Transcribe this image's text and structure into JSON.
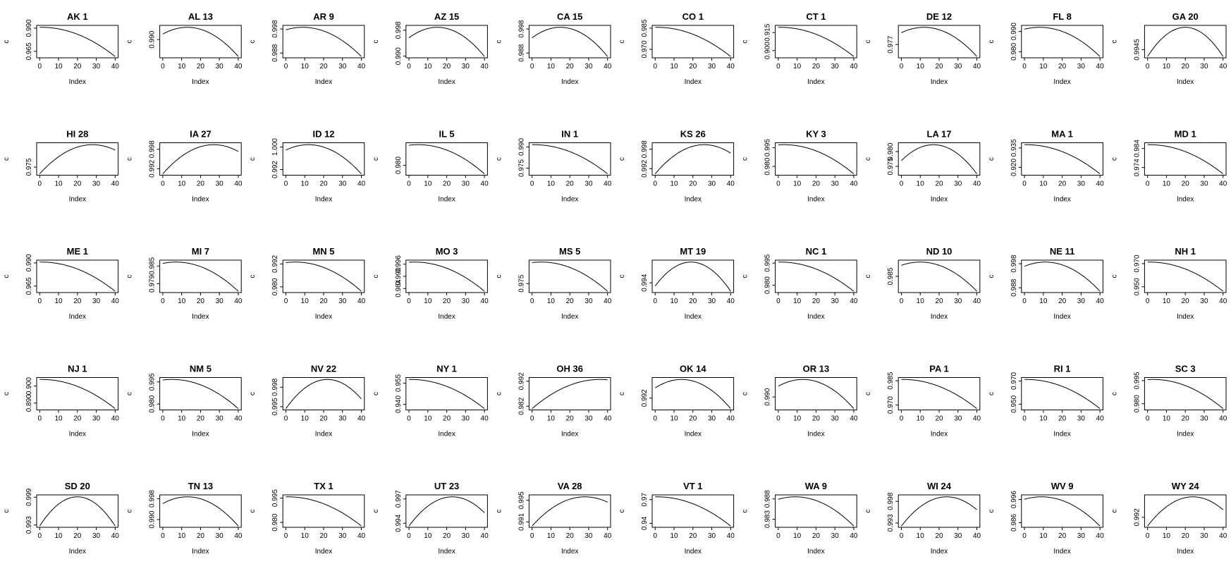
{
  "chart_data": {
    "type": "line",
    "layout": {
      "rows": 5,
      "cols": 10
    },
    "xlabel": "Index",
    "ylabel": "c",
    "xlim": [
      0,
      40
    ],
    "xticks": [
      0,
      10,
      20,
      30,
      40
    ],
    "xtick_labels": [
      "0",
      "10",
      "20",
      "30",
      "40"
    ],
    "panels": [
      {
        "title": "AK 1",
        "peak": 1,
        "ylim": [
          0.958,
          0.993
        ],
        "yticks": [
          0.965,
          0.99
        ],
        "ytick_labels": [
          "0.965",
          "0.990"
        ]
      },
      {
        "title": "AL 13",
        "peak": 13,
        "ylim": [
          0.981,
          0.997
        ],
        "yticks": [
          0.99
        ],
        "ytick_labels": [
          "0.990"
        ]
      },
      {
        "title": "AR 9",
        "peak": 9,
        "ylim": [
          0.986,
          0.9995
        ],
        "yticks": [
          0.988,
          0.998
        ],
        "ytick_labels": [
          "0.988",
          "0.998"
        ]
      },
      {
        "title": "AZ 15",
        "peak": 15,
        "ylim": [
          0.9895,
          0.9995
        ],
        "yticks": [
          0.99,
          0.998
        ],
        "ytick_labels": [
          "0.990",
          "0.998"
        ]
      },
      {
        "title": "CA 15",
        "peak": 15,
        "ylim": [
          0.986,
          0.9995
        ],
        "yticks": [
          0.988,
          0.998
        ],
        "ytick_labels": [
          "0.988",
          "0.998"
        ]
      },
      {
        "title": "CO 1",
        "peak": 1,
        "ylim": [
          0.964,
          0.987
        ],
        "yticks": [
          0.97,
          0.985
        ],
        "ytick_labels": [
          "0.970",
          "0.985"
        ]
      },
      {
        "title": "CT 1",
        "peak": 1,
        "ylim": [
          0.894,
          0.921
        ],
        "yticks": [
          0.9,
          0.915
        ],
        "ytick_labels": [
          "0.900",
          "0.915"
        ]
      },
      {
        "title": "DE 12",
        "peak": 12,
        "ylim": [
          0.968,
          0.99
        ],
        "yticks": [
          0.977
        ],
        "ytick_labels": [
          "0.977"
        ]
      },
      {
        "title": "FL 8",
        "peak": 8,
        "ylim": [
          0.977,
          0.993
        ],
        "yticks": [
          0.98,
          0.99
        ],
        "ytick_labels": [
          "0.980",
          "0.990"
        ]
      },
      {
        "title": "GA 20",
        "peak": 20,
        "ylim": [
          0.9935,
          0.9975
        ],
        "yticks": [
          0.9945
        ],
        "ytick_labels": [
          "0.9945"
        ]
      },
      {
        "title": "HI 28",
        "peak": 28,
        "ylim": [
          0.97,
          0.99
        ],
        "yticks": [
          0.975
        ],
        "ytick_labels": [
          "0.975"
        ]
      },
      {
        "title": "IA 27",
        "peak": 27,
        "ylim": [
          0.99,
          1.0
        ],
        "yticks": [
          0.992,
          0.998
        ],
        "ytick_labels": [
          "0.992",
          "0.998"
        ]
      },
      {
        "title": "ID 12",
        "peak": 12,
        "ylim": [
          0.99,
          1.0015
        ],
        "yticks": [
          0.992,
          1.0
        ],
        "ytick_labels": [
          "0.992",
          "1.000"
        ]
      },
      {
        "title": "IL 5",
        "peak": 5,
        "ylim": [
          0.973,
          0.996
        ],
        "yticks": [
          0.98
        ],
        "ytick_labels": [
          "0.980"
        ]
      },
      {
        "title": "IN 1",
        "peak": 1,
        "ylim": [
          0.97,
          0.993
        ],
        "yticks": [
          0.975,
          0.99
        ],
        "ytick_labels": [
          "0.975",
          "0.990"
        ]
      },
      {
        "title": "KS 26",
        "peak": 26,
        "ylim": [
          0.99,
          1.0
        ],
        "yticks": [
          0.992,
          0.998
        ],
        "ytick_labels": [
          "0.992",
          "0.998"
        ]
      },
      {
        "title": "KY 3",
        "peak": 3,
        "ylim": [
          0.973,
          0.999
        ],
        "yticks": [
          0.98,
          0.995
        ],
        "ytick_labels": [
          "0.980",
          "0.995"
        ]
      },
      {
        "title": "LA 17",
        "peak": 17,
        "ylim": [
          0.972,
          0.983
        ],
        "yticks": [
          0.975,
          0.98
        ],
        "ytick_labels": [
          "0.975",
          "0.980"
        ]
      },
      {
        "title": "MA 1",
        "peak": 1,
        "ylim": [
          0.914,
          0.939
        ],
        "yticks": [
          0.92,
          0.935
        ],
        "ytick_labels": [
          "0.920",
          "0.935"
        ]
      },
      {
        "title": "MD 1",
        "peak": 1,
        "ylim": [
          0.97,
          0.987
        ],
        "yticks": [
          0.974,
          0.984
        ],
        "ytick_labels": [
          "0.974",
          "0.984"
        ]
      },
      {
        "title": "ME 1",
        "peak": 1,
        "ylim": [
          0.958,
          0.993
        ],
        "yticks": [
          0.965,
          0.99
        ],
        "ytick_labels": [
          "0.965",
          "0.990"
        ]
      },
      {
        "title": "MI 7",
        "peak": 7,
        "ylim": [
          0.976,
          0.987
        ],
        "yticks": [
          0.979,
          0.985
        ],
        "ytick_labels": [
          "0.979",
          "0.985"
        ]
      },
      {
        "title": "MN 5",
        "peak": 5,
        "ylim": [
          0.977,
          0.994
        ],
        "yticks": [
          0.98,
          0.992
        ],
        "ytick_labels": [
          "0.980",
          "0.992"
        ]
      },
      {
        "title": "MO 3",
        "peak": 3,
        "ylim": [
          0.982,
          0.998
        ],
        "yticks": [
          0.984,
          0.99,
          0.996
        ],
        "ytick_labels": [
          "0.984",
          "0.990",
          "0.996"
        ]
      },
      {
        "title": "MS 5",
        "peak": 5,
        "ylim": [
          0.97,
          0.988
        ],
        "yticks": [
          0.975
        ],
        "ytick_labels": [
          "0.975"
        ]
      },
      {
        "title": "MT 19",
        "peak": 19,
        "ylim": [
          0.9925,
          0.9975
        ],
        "yticks": [
          0.994
        ],
        "ytick_labels": [
          "0.994"
        ]
      },
      {
        "title": "NC 1",
        "peak": 1,
        "ylim": [
          0.975,
          0.997
        ],
        "yticks": [
          0.98,
          0.995
        ],
        "ytick_labels": [
          "0.980",
          "0.995"
        ]
      },
      {
        "title": "ND 10",
        "peak": 10,
        "ylim": [
          0.977,
          0.993
        ],
        "yticks": [
          0.985
        ],
        "ytick_labels": [
          "0.985"
        ]
      },
      {
        "title": "NE 11",
        "peak": 11,
        "ylim": [
          0.986,
          0.9995
        ],
        "yticks": [
          0.988,
          0.998
        ],
        "ytick_labels": [
          "0.988",
          "0.998"
        ]
      },
      {
        "title": "NH 1",
        "peak": 1,
        "ylim": [
          0.945,
          0.973
        ],
        "yticks": [
          0.95,
          0.97
        ],
        "ytick_labels": [
          "0.950",
          "0.970"
        ]
      },
      {
        "title": "NJ 1",
        "peak": 1,
        "ylim": [
          0.886,
          0.905
        ],
        "yticks": [
          0.89,
          0.9
        ],
        "ytick_labels": [
          "0.890",
          "0.900"
        ]
      },
      {
        "title": "NM 5",
        "peak": 5,
        "ylim": [
          0.976,
          0.998
        ],
        "yticks": [
          0.98,
          0.995
        ],
        "ytick_labels": [
          "0.980",
          "0.995"
        ]
      },
      {
        "title": "NV 22",
        "peak": 22,
        "ylim": [
          0.9945,
          0.9995
        ],
        "yticks": [
          0.995,
          0.998
        ],
        "ytick_labels": [
          "0.995",
          "0.998"
        ]
      },
      {
        "title": "NY 1",
        "peak": 1,
        "ylim": [
          0.936,
          0.959
        ],
        "yticks": [
          0.94,
          0.955
        ],
        "ytick_labels": [
          "0.940",
          "0.955"
        ]
      },
      {
        "title": "OH 36",
        "peak": 36,
        "ylim": [
          0.9805,
          0.9935
        ],
        "yticks": [
          0.982,
          0.992
        ],
        "ytick_labels": [
          "0.982",
          "0.992"
        ]
      },
      {
        "title": "OK 14",
        "peak": 14,
        "ylim": [
          0.99,
          0.9955
        ],
        "yticks": [
          0.992
        ],
        "ytick_labels": [
          "0.992"
        ]
      },
      {
        "title": "OR 13",
        "peak": 13,
        "ylim": [
          0.986,
          0.996
        ],
        "yticks": [
          0.99
        ],
        "ytick_labels": [
          "0.990"
        ]
      },
      {
        "title": "PA 1",
        "peak": 1,
        "ylim": [
          0.967,
          0.987
        ],
        "yticks": [
          0.97,
          0.985
        ],
        "ytick_labels": [
          "0.970",
          "0.985"
        ]
      },
      {
        "title": "RI 1",
        "peak": 1,
        "ylim": [
          0.945,
          0.973
        ],
        "yticks": [
          0.95,
          0.97
        ],
        "ytick_labels": [
          "0.950",
          "0.970"
        ]
      },
      {
        "title": "SC 3",
        "peak": 3,
        "ylim": [
          0.976,
          0.997
        ],
        "yticks": [
          0.98,
          0.995
        ],
        "ytick_labels": [
          "0.980",
          "0.995"
        ]
      },
      {
        "title": "SD 20",
        "peak": 20,
        "ylim": [
          0.9925,
          0.9995
        ],
        "yticks": [
          0.993,
          0.999
        ],
        "ytick_labels": [
          "0.993",
          "0.999"
        ]
      },
      {
        "title": "TN 13",
        "peak": 13,
        "ylim": [
          0.987,
          0.9995
        ],
        "yticks": [
          0.99,
          0.998
        ],
        "ytick_labels": [
          "0.990",
          "0.998"
        ]
      },
      {
        "title": "TX 1",
        "peak": 1,
        "ylim": [
          0.977,
          0.997
        ],
        "yticks": [
          0.98,
          0.995
        ],
        "ytick_labels": [
          "0.980",
          "0.995"
        ]
      },
      {
        "title": "UT 23",
        "peak": 23,
        "ylim": [
          0.9935,
          0.9975
        ],
        "yticks": [
          0.994,
          0.997
        ],
        "ytick_labels": [
          "0.994",
          "0.997"
        ]
      },
      {
        "title": "VA 28",
        "peak": 28,
        "ylim": [
          0.99,
          0.996
        ],
        "yticks": [
          0.991,
          0.995
        ],
        "ytick_labels": [
          "0.991",
          "0.995"
        ]
      },
      {
        "title": "VT 1",
        "peak": 1,
        "ylim": [
          0.935,
          0.976
        ],
        "yticks": [
          0.94,
          0.97
        ],
        "ytick_labels": [
          "0.94",
          "0.97"
        ]
      },
      {
        "title": "WA 9",
        "peak": 9,
        "ylim": [
          0.981,
          0.989
        ],
        "yticks": [
          0.983,
          0.988
        ],
        "ytick_labels": [
          "0.983",
          "0.988"
        ]
      },
      {
        "title": "WI 24",
        "peak": 24,
        "ylim": [
          0.992,
          0.9995
        ],
        "yticks": [
          0.993,
          0.998
        ],
        "ytick_labels": [
          "0.993",
          "0.998"
        ]
      },
      {
        "title": "WV 9",
        "peak": 9,
        "ylim": [
          0.984,
          0.998
        ],
        "yticks": [
          0.986,
          0.996
        ],
        "ytick_labels": [
          "0.986",
          "0.996"
        ]
      },
      {
        "title": "WY 24",
        "peak": 24,
        "ylim": [
          0.99,
          0.9965
        ],
        "yticks": [
          0.992
        ],
        "ytick_labels": [
          "0.992"
        ]
      }
    ],
    "grid": false,
    "legend": "none"
  }
}
